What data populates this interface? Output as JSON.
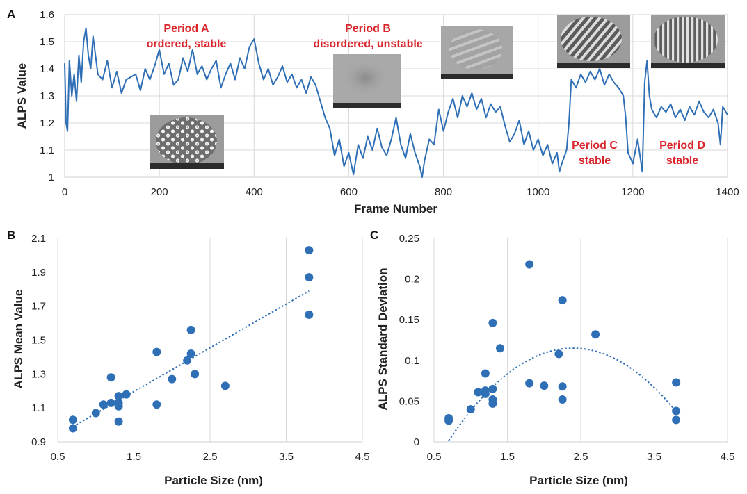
{
  "chart_data": [
    {
      "panel": "A",
      "type": "line",
      "xlabel": "Frame Number",
      "ylabel": "ALPS Value",
      "xlim": [
        0,
        1400
      ],
      "ylim": [
        1,
        1.6
      ],
      "xticks": [
        0,
        200,
        400,
        600,
        800,
        1000,
        1200,
        1400
      ],
      "yticks": [
        1,
        1.1,
        1.2,
        1.3,
        1.4,
        1.5,
        1.6
      ],
      "xtick_labels": [
        "0",
        "200",
        "400",
        "600",
        "800",
        "1000",
        "1200",
        "1400"
      ],
      "ytick_labels": [
        "1",
        "1.1",
        "1.2",
        "1.3",
        "1.4",
        "1.5",
        "1.6"
      ],
      "color": "#2f6fb6",
      "series": [
        {
          "name": "ALPS",
          "x": [
            0,
            3,
            6,
            10,
            15,
            20,
            25,
            30,
            35,
            40,
            45,
            50,
            55,
            60,
            70,
            80,
            90,
            100,
            110,
            120,
            130,
            140,
            150,
            160,
            170,
            180,
            190,
            200,
            210,
            220,
            230,
            240,
            250,
            260,
            270,
            280,
            290,
            300,
            310,
            320,
            330,
            340,
            350,
            360,
            370,
            380,
            390,
            400,
            410,
            420,
            430,
            440,
            450,
            460,
            470,
            480,
            490,
            500,
            510,
            520,
            530,
            540,
            550,
            560,
            570,
            580,
            590,
            600,
            610,
            620,
            630,
            640,
            650,
            660,
            670,
            680,
            690,
            700,
            710,
            720,
            730,
            740,
            750,
            755,
            760,
            770,
            780,
            790,
            800,
            810,
            820,
            830,
            840,
            850,
            860,
            870,
            880,
            890,
            900,
            910,
            920,
            930,
            940,
            950,
            960,
            970,
            980,
            990,
            1000,
            1010,
            1020,
            1030,
            1040,
            1045,
            1050,
            1060,
            1065,
            1070,
            1080,
            1090,
            1100,
            1110,
            1120,
            1130,
            1140,
            1150,
            1160,
            1170,
            1180,
            1185,
            1190,
            1200,
            1210,
            1220,
            1225,
            1230,
            1235,
            1240,
            1250,
            1260,
            1270,
            1280,
            1290,
            1300,
            1310,
            1320,
            1330,
            1340,
            1350,
            1360,
            1370,
            1380,
            1385,
            1390,
            1400
          ],
          "values": [
            1.42,
            1.2,
            1.17,
            1.43,
            1.3,
            1.38,
            1.28,
            1.45,
            1.35,
            1.5,
            1.55,
            1.45,
            1.4,
            1.52,
            1.38,
            1.36,
            1.43,
            1.33,
            1.39,
            1.31,
            1.36,
            1.37,
            1.38,
            1.32,
            1.4,
            1.36,
            1.41,
            1.47,
            1.38,
            1.42,
            1.34,
            1.36,
            1.44,
            1.39,
            1.47,
            1.38,
            1.41,
            1.36,
            1.4,
            1.43,
            1.33,
            1.38,
            1.42,
            1.36,
            1.44,
            1.4,
            1.48,
            1.51,
            1.42,
            1.36,
            1.4,
            1.34,
            1.37,
            1.41,
            1.35,
            1.38,
            1.33,
            1.36,
            1.31,
            1.37,
            1.34,
            1.28,
            1.22,
            1.18,
            1.08,
            1.14,
            1.04,
            1.09,
            1.01,
            1.12,
            1.07,
            1.15,
            1.1,
            1.18,
            1.11,
            1.08,
            1.14,
            1.22,
            1.12,
            1.07,
            1.16,
            1.09,
            1.04,
            1.0,
            1.06,
            1.14,
            1.12,
            1.25,
            1.17,
            1.24,
            1.29,
            1.22,
            1.3,
            1.26,
            1.31,
            1.25,
            1.29,
            1.22,
            1.27,
            1.24,
            1.26,
            1.19,
            1.13,
            1.16,
            1.21,
            1.12,
            1.17,
            1.1,
            1.14,
            1.08,
            1.12,
            1.05,
            1.09,
            1.02,
            1.05,
            1.1,
            1.2,
            1.36,
            1.33,
            1.38,
            1.35,
            1.39,
            1.36,
            1.4,
            1.34,
            1.38,
            1.35,
            1.33,
            1.3,
            1.22,
            1.09,
            1.05,
            1.14,
            1.02,
            1.35,
            1.43,
            1.3,
            1.25,
            1.22,
            1.26,
            1.24,
            1.27,
            1.22,
            1.25,
            1.21,
            1.26,
            1.23,
            1.28,
            1.24,
            1.22,
            1.25,
            1.2,
            1.12,
            1.26,
            1.23
          ]
        }
      ],
      "annotations": [
        {
          "lines": [
            "Period A",
            "ordered, stable"
          ]
        },
        {
          "lines": [
            "Period B",
            "disordered, unstable"
          ]
        },
        {
          "lines": [
            "Period C",
            "stable"
          ]
        },
        {
          "lines": [
            "Period D",
            "stable"
          ]
        }
      ],
      "insets": [
        "ordered-lattice-micrograph",
        "disordered-particle-micrograph",
        "partially-ordered-micrograph",
        "striped-lattice-micrograph-c",
        "striped-lattice-micrograph-d"
      ]
    },
    {
      "panel": "B",
      "type": "scatter",
      "xlabel": "Particle Size (nm)",
      "ylabel": "ALPS Mean Value",
      "xlim": [
        0.5,
        4.5
      ],
      "ylim": [
        0.9,
        2.1
      ],
      "xticks": [
        0.5,
        1.5,
        2.5,
        3.5,
        4.5
      ],
      "yticks": [
        0.9,
        1.1,
        1.3,
        1.5,
        1.7,
        1.9,
        2.1
      ],
      "xtick_labels": [
        "0.5",
        "1.5",
        "2.5",
        "3.5",
        "4.5"
      ],
      "ytick_labels": [
        "0.9",
        "1.1",
        "1.3",
        "1.5",
        "1.7",
        "1.9",
        "2.1"
      ],
      "color": "#2f6fb6",
      "points": [
        [
          0.7,
          1.03
        ],
        [
          0.7,
          0.98
        ],
        [
          1.0,
          1.07
        ],
        [
          1.1,
          1.12
        ],
        [
          1.2,
          1.13
        ],
        [
          1.2,
          1.28
        ],
        [
          1.3,
          1.17
        ],
        [
          1.3,
          1.13
        ],
        [
          1.3,
          1.11
        ],
        [
          1.3,
          1.02
        ],
        [
          1.4,
          1.18
        ],
        [
          1.8,
          1.43
        ],
        [
          1.8,
          1.12
        ],
        [
          2.0,
          1.27
        ],
        [
          2.2,
          1.38
        ],
        [
          2.25,
          1.56
        ],
        [
          2.25,
          1.42
        ],
        [
          2.3,
          1.3
        ],
        [
          2.7,
          1.23
        ],
        [
          3.8,
          2.03
        ],
        [
          3.8,
          1.87
        ],
        [
          3.8,
          1.65
        ]
      ],
      "trendline": {
        "type": "linear",
        "x": [
          0.7,
          3.8
        ],
        "y": [
          0.99,
          1.79
        ]
      }
    },
    {
      "panel": "C",
      "type": "scatter",
      "xlabel": "Particle Size (nm)",
      "ylabel": "ALPS Standard Deviation",
      "xlim": [
        0.5,
        4.5
      ],
      "ylim": [
        0,
        0.25
      ],
      "xticks": [
        0.5,
        1.5,
        2.5,
        3.5,
        4.5
      ],
      "yticks": [
        0,
        0.05,
        0.1,
        0.15,
        0.2,
        0.25
      ],
      "xtick_labels": [
        "0.5",
        "1.5",
        "2.5",
        "3.5",
        "4.5"
      ],
      "ytick_labels": [
        "0",
        "0.05",
        "0.1",
        "0.15",
        "0.2",
        "0.25"
      ],
      "color": "#2f6fb6",
      "points": [
        [
          0.7,
          0.029
        ],
        [
          0.7,
          0.026
        ],
        [
          1.0,
          0.04
        ],
        [
          1.1,
          0.061
        ],
        [
          1.2,
          0.084
        ],
        [
          1.2,
          0.063
        ],
        [
          1.2,
          0.059
        ],
        [
          1.3,
          0.146
        ],
        [
          1.3,
          0.065
        ],
        [
          1.3,
          0.052
        ],
        [
          1.3,
          0.047
        ],
        [
          1.4,
          0.115
        ],
        [
          1.8,
          0.218
        ],
        [
          1.8,
          0.072
        ],
        [
          2.0,
          0.069
        ],
        [
          2.2,
          0.108
        ],
        [
          2.25,
          0.174
        ],
        [
          2.25,
          0.068
        ],
        [
          2.25,
          0.052
        ],
        [
          2.7,
          0.132
        ],
        [
          3.8,
          0.073
        ],
        [
          3.8,
          0.038
        ],
        [
          3.8,
          0.027
        ]
      ],
      "trendline": {
        "type": "poly2",
        "x_range": [
          0.7,
          3.8
        ],
        "coeffs": [
          -0.0395,
          0.1892,
          -0.1115
        ]
      }
    }
  ]
}
